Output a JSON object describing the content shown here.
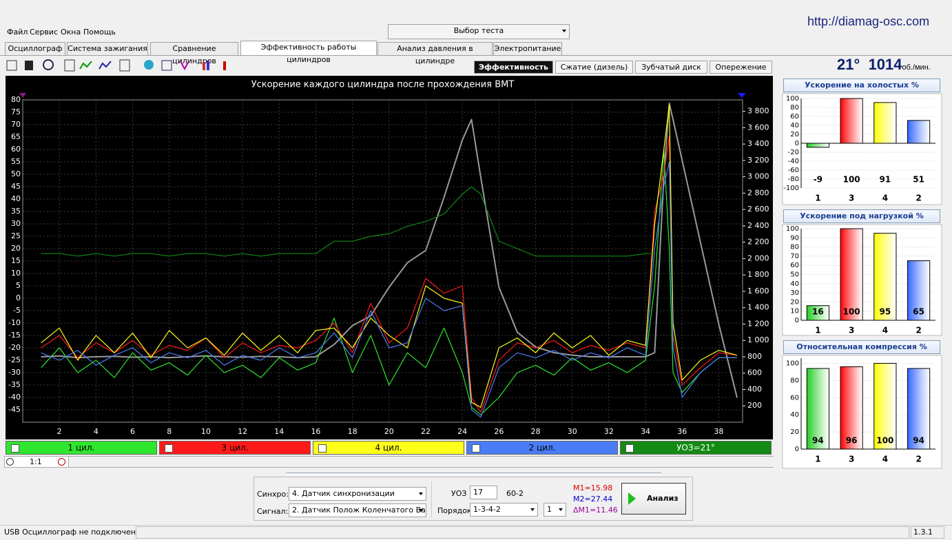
{
  "header": {
    "url": "http://diamag-osc.com",
    "menu": [
      "Файл",
      "Сервис",
      "Окна",
      "Помощь"
    ],
    "test_select": "Выбор теста"
  },
  "tabs": [
    "Осциллограф",
    "Система зажигания",
    "Сравнение цилиндров",
    "Эффективность работы цилиндров",
    "Анализ давления в цилиндре",
    "Электропитание"
  ],
  "active_tab": 3,
  "subtabs": [
    "Эффективность",
    "Сжатие (дизель)",
    "Зубчатый диск",
    "Опережение"
  ],
  "active_subtab": 0,
  "readout": {
    "angle": "21°",
    "rpm": "1014",
    "unit": "об./мин."
  },
  "chart_data": [
    {
      "type": "line",
      "title": "Ускорение каждого цилиндра после прохождения ВМТ",
      "x": [
        1,
        2,
        3,
        4,
        5,
        6,
        7,
        8,
        9,
        10,
        11,
        12,
        13,
        14,
        15,
        16,
        17,
        18,
        19,
        20,
        21,
        22,
        23,
        24,
        24.5,
        25,
        26,
        27,
        28,
        29,
        30,
        31,
        32,
        33,
        34,
        34.5,
        35,
        35.3,
        35.5,
        36,
        37,
        38,
        39
      ],
      "xlim": [
        0,
        39.3
      ],
      "xticks": [
        2,
        4,
        6,
        8,
        10,
        12,
        14,
        16,
        18,
        20,
        22,
        24,
        26,
        28,
        30,
        32,
        34,
        36,
        38
      ],
      "ylim": [
        -50,
        80
      ],
      "yticks": [
        -45,
        -40,
        -35,
        -30,
        -25,
        -20,
        -15,
        -10,
        -5,
        0,
        5,
        10,
        15,
        20,
        25,
        30,
        35,
        40,
        45,
        50,
        55,
        60,
        65,
        70,
        75,
        80
      ],
      "y2lim": [
        0,
        3940
      ],
      "y2ticks": [
        200,
        400,
        600,
        800,
        {
          "value": 1000,
          "label": "1 000"
        },
        {
          "value": 1200,
          "label": "1 200"
        },
        {
          "value": 1400,
          "label": "1 400"
        },
        {
          "value": 1600,
          "label": "1 600"
        },
        {
          "value": 1800,
          "label": "1 800"
        },
        {
          "value": 2000,
          "label": "2 000"
        },
        {
          "value": 2200,
          "label": "2 200"
        },
        {
          "value": 2400,
          "label": "2 400"
        },
        {
          "value": 2600,
          "label": "2 600"
        },
        {
          "value": 2800,
          "label": "2 800"
        },
        {
          "value": 3000,
          "label": "3 000"
        },
        {
          "value": 3200,
          "label": "3 200"
        },
        {
          "value": 3400,
          "label": "3 400"
        },
        {
          "value": 3600,
          "label": "3 600"
        },
        {
          "value": 3800,
          "label": "3 800"
        }
      ],
      "grid": true,
      "series": [
        {
          "name": "1 цил.",
          "color": "#2ee62e",
          "values": [
            -28,
            -20,
            -30,
            -25,
            -32,
            -22,
            -29,
            -26,
            -31,
            -23,
            -30,
            -27,
            -32,
            -24,
            -29,
            -26,
            -8,
            -30,
            -15,
            -35,
            -22,
            -28,
            -12,
            -30,
            -44,
            -47,
            -40,
            -30,
            -27,
            -31,
            -24,
            -29,
            -26,
            -30,
            -25,
            5,
            60,
            20,
            -30,
            -38,
            -30,
            -24,
            -24
          ]
        },
        {
          "name": "3 цил.",
          "color": "#ff1a1a",
          "values": [
            -20,
            -15,
            -24,
            -18,
            -22,
            -17,
            -23,
            -19,
            -21,
            -16,
            -24,
            -18,
            -22,
            -19,
            -20,
            -17,
            -10,
            -22,
            -2,
            -18,
            -12,
            8,
            2,
            5,
            -40,
            -46,
            -25,
            -18,
            -20,
            -17,
            -22,
            -19,
            -21,
            -18,
            -20,
            35,
            50,
            65,
            -15,
            -35,
            -28,
            -22,
            -23
          ]
        },
        {
          "name": "4 цил.",
          "color": "#ffff1a",
          "values": [
            -18,
            -12,
            -25,
            -15,
            -22,
            -14,
            -24,
            -13,
            -20,
            -16,
            -23,
            -14,
            -21,
            -15,
            -22,
            -13,
            -12,
            -20,
            -8,
            -15,
            -20,
            5,
            0,
            -2,
            -42,
            -44,
            -20,
            -16,
            -22,
            -14,
            -20,
            -15,
            -23,
            -17,
            -19,
            30,
            60,
            78,
            -10,
            -33,
            -25,
            -21,
            -23
          ]
        },
        {
          "name": "2 цил.",
          "color": "#4a7cf5",
          "values": [
            -22,
            -25,
            -21,
            -27,
            -23,
            -20,
            -26,
            -22,
            -24,
            -21,
            -27,
            -23,
            -25,
            -20,
            -24,
            -22,
            -14,
            -24,
            -5,
            -20,
            -18,
            0,
            -5,
            -3,
            -45,
            -48,
            -28,
            -22,
            -24,
            -21,
            -25,
            -22,
            -24,
            -20,
            -23,
            20,
            45,
            55,
            -20,
            -40,
            -30,
            -24,
            -24
          ]
        },
        {
          "name": "УОЗ=21°",
          "color": "#138a13",
          "values": [
            18,
            18,
            17,
            18,
            17,
            18,
            18,
            17,
            18,
            18,
            17,
            18,
            17,
            18,
            18,
            18,
            23,
            23,
            25,
            26,
            29,
            31,
            34,
            42,
            45,
            42,
            23,
            20,
            17,
            17,
            17,
            17,
            17,
            17,
            18,
            18,
            null,
            null,
            null,
            null,
            null,
            null,
            null
          ]
        },
        {
          "color": "#9a9a9a",
          "axis": "y2",
          "values": [
            800,
            810,
            790,
            800,
            805,
            795,
            800,
            790,
            800,
            810,
            800,
            795,
            805,
            800,
            790,
            800,
            950,
            1180,
            1300,
            1650,
            1950,
            2100,
            2750,
            3450,
            3700,
            3000,
            1650,
            1100,
            920,
            850,
            820,
            800,
            800,
            800,
            800,
            850,
            3000,
            3900,
            3700,
            3200,
            2200,
            1200,
            300
          ]
        }
      ]
    },
    {
      "type": "bar",
      "title": "Ускорение на холостых %",
      "categories": [
        "1",
        "3",
        "4",
        "2"
      ],
      "values": [
        -9,
        100,
        91,
        51
      ],
      "colors": [
        "#22cc22",
        "#ff0000",
        "#ffff00",
        "#3366ff"
      ],
      "ylim": [
        -100,
        100
      ],
      "yticks": [
        -100,
        -80,
        -60,
        -40,
        -20,
        0,
        20,
        40,
        60,
        80,
        100
      ],
      "grid": true
    },
    {
      "type": "bar",
      "title": "Ускорение под нагрузкой %",
      "categories": [
        "1",
        "3",
        "4",
        "2"
      ],
      "values": [
        16,
        100,
        95,
        65
      ],
      "colors": [
        "#22cc22",
        "#ff0000",
        "#ffff00",
        "#3366ff"
      ],
      "ylim": [
        0,
        100
      ],
      "yticks": [
        0,
        10,
        20,
        30,
        40,
        50,
        60,
        70,
        80,
        90,
        100
      ],
      "grid": true
    },
    {
      "type": "bar",
      "title": "Относительная компрессия %",
      "categories": [
        "1",
        "3",
        "4",
        "2"
      ],
      "values": [
        94,
        96,
        100,
        94
      ],
      "colors": [
        "#22cc22",
        "#ff0000",
        "#ffff00",
        "#3366ff"
      ],
      "ylim": [
        0,
        106
      ],
      "yticks": [
        0,
        20,
        40,
        60,
        80,
        100
      ],
      "grid": true
    }
  ],
  "zoom": "1:1",
  "controls": {
    "sync_label": "Синхро:",
    "sync_value": "4.  Датчик синхронизации",
    "signal_label": "Сигнал:",
    "signal_value": "2.  Датчик Полож Коленчатого Вал",
    "uoz_label": "УОЗ",
    "uoz_value": "17",
    "wheel": "60-2",
    "order_label": "Порядок",
    "order_value": "1-3-4-2",
    "order_num": "1",
    "m1": "M1=15.98",
    "m2": "M2=27.44",
    "dm1": "ΔM1=11.46",
    "button": "Анализ"
  },
  "status": {
    "left": "USB Осциллограф не подключен",
    "version": "1.3.1"
  }
}
